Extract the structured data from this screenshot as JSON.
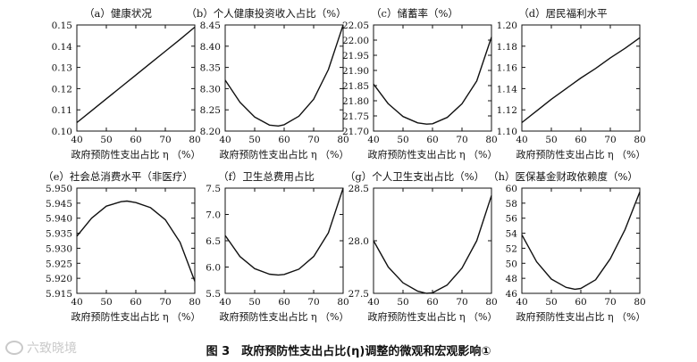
{
  "figure_caption": "图 3　政府预防性支出占比(η)调整的微观和宏观影响①",
  "watermark": "六致晓境",
  "chart_data": [
    {
      "type": "line",
      "title": "（a）健康状况",
      "xlabel": "政府预防性支出占比 η （%）",
      "xlim": [
        40,
        80
      ],
      "x_ticks": [
        40,
        50,
        60,
        70,
        80
      ],
      "ylim": [
        0.1,
        0.15
      ],
      "y_ticks": [
        "0.10",
        "0.11",
        "0.12",
        "0.13",
        "0.14",
        "0.15"
      ],
      "x": [
        40,
        45,
        50,
        55,
        60,
        65,
        70,
        75,
        80
      ],
      "y": [
        0.104,
        0.1096,
        0.1152,
        0.1208,
        0.1264,
        0.132,
        0.1376,
        0.1432,
        0.149
      ]
    },
    {
      "type": "line",
      "title": "（b）个人健康投资收入占比（%）",
      "xlabel": "政府预防性支出占比 η （%）",
      "xlim": [
        40,
        80
      ],
      "x_ticks": [
        40,
        50,
        60,
        70,
        80
      ],
      "ylim": [
        8.2,
        8.45
      ],
      "y_ticks": [
        "8.20",
        "8.25",
        "8.30",
        "8.35",
        "8.40",
        "8.45"
      ],
      "x": [
        40,
        45,
        50,
        55,
        58,
        60,
        65,
        70,
        75,
        80
      ],
      "y": [
        8.32,
        8.268,
        8.233,
        8.214,
        8.212,
        8.215,
        8.235,
        8.275,
        8.345,
        8.45
      ]
    },
    {
      "type": "line",
      "title": "（c）储蓄率（%）",
      "xlabel": "政府预防性支出占比 η （%）",
      "xlim": [
        40,
        80
      ],
      "x_ticks": [
        40,
        50,
        60,
        70,
        80
      ],
      "ylim": [
        21.7,
        22.05
      ],
      "y_ticks": [
        "21.70",
        "21.75",
        "21.80",
        "21.85",
        "21.90",
        "21.95",
        "22.00",
        "22.05"
      ],
      "x": [
        40,
        45,
        50,
        55,
        58,
        60,
        65,
        70,
        75,
        80
      ],
      "y": [
        21.855,
        21.79,
        21.748,
        21.727,
        21.723,
        21.724,
        21.745,
        21.79,
        21.865,
        22.01
      ]
    },
    {
      "type": "line",
      "title": "（d）居民福利水平",
      "xlabel": "政府预防性支出占比 η （%）",
      "xlim": [
        40,
        80
      ],
      "x_ticks": [
        40,
        50,
        60,
        70,
        80
      ],
      "ylim": [
        1.1,
        1.2
      ],
      "y_ticks": [
        "1.10",
        "1.12",
        "1.14",
        "1.16",
        "1.18",
        "1.20"
      ],
      "x": [
        40,
        45,
        50,
        55,
        60,
        65,
        70,
        75,
        80
      ],
      "y": [
        1.108,
        1.119,
        1.13,
        1.14,
        1.15,
        1.159,
        1.169,
        1.178,
        1.188
      ]
    },
    {
      "type": "line",
      "title": "（e）社会总消费水平（非医疗）",
      "xlabel": "政府预防性支出占比 η （%）",
      "xlim": [
        40,
        80
      ],
      "x_ticks": [
        40,
        50,
        60,
        70,
        80
      ],
      "ylim": [
        5.915,
        5.95
      ],
      "y_ticks": [
        "5.915",
        "5.920",
        "5.925",
        "5.930",
        "5.935",
        "5.940",
        "5.945",
        "5.950"
      ],
      "x": [
        40,
        45,
        50,
        55,
        57,
        60,
        65,
        70,
        75,
        80
      ],
      "y": [
        5.934,
        5.94,
        5.944,
        5.9455,
        5.9457,
        5.9452,
        5.9435,
        5.9395,
        5.932,
        5.919
      ]
    },
    {
      "type": "line",
      "title": "（f）卫生总费用占比",
      "xlabel": "政府预防性支出占比 η （%）",
      "xlim": [
        40,
        80
      ],
      "x_ticks": [
        40,
        50,
        60,
        70,
        80
      ],
      "ylim": [
        5.5,
        7.5
      ],
      "y_ticks": [
        "5.5",
        "6.0",
        "6.5",
        "7.0",
        "7.5"
      ],
      "x": [
        40,
        45,
        50,
        55,
        58,
        60,
        65,
        70,
        75,
        80
      ],
      "y": [
        6.6,
        6.2,
        5.97,
        5.865,
        5.85,
        5.86,
        5.96,
        6.2,
        6.65,
        7.5
      ]
    },
    {
      "type": "line",
      "title": "（g）个人卫生支出占比（%）",
      "xlabel": "政府预防性支出占比 η （%）",
      "xlim": [
        40,
        80
      ],
      "x_ticks": [
        40,
        50,
        60,
        70,
        80
      ],
      "ylim": [
        27.5,
        28.5
      ],
      "y_ticks": [
        "27.5",
        "28.0",
        "28.5"
      ],
      "x": [
        40,
        45,
        50,
        55,
        58,
        60,
        65,
        70,
        75,
        80
      ],
      "y": [
        28.0,
        27.75,
        27.6,
        27.52,
        27.5,
        27.505,
        27.58,
        27.74,
        28.0,
        28.43
      ]
    },
    {
      "type": "line",
      "title": "（h）医保基金财政依赖度（%）",
      "xlabel": "政府预防性支出占比 η （%）",
      "xlim": [
        40,
        80
      ],
      "x_ticks": [
        40,
        50,
        60,
        70,
        80
      ],
      "ylim": [
        46,
        60
      ],
      "y_ticks": [
        "46",
        "48",
        "50",
        "52",
        "54",
        "56",
        "58",
        "60"
      ],
      "x": [
        40,
        45,
        50,
        55,
        58,
        60,
        65,
        70,
        75,
        80
      ],
      "y": [
        53.8,
        50.2,
        47.9,
        46.8,
        46.55,
        46.65,
        47.8,
        50.6,
        54.5,
        59.5
      ]
    }
  ]
}
